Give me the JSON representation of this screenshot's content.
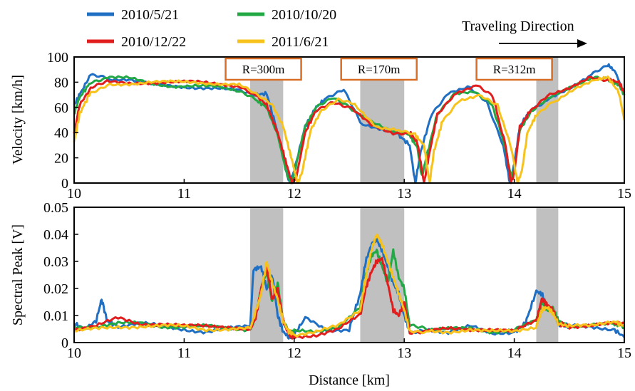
{
  "chart_data": [
    {
      "type": "line",
      "id": "velocity",
      "xlim": [
        10,
        15
      ],
      "ylim": [
        0,
        100
      ],
      "xticks": [
        "10",
        "11",
        "12",
        "13",
        "14",
        "15"
      ],
      "yticks": [
        "0",
        "20",
        "40",
        "60",
        "80",
        "100"
      ],
      "ylabel": "Velocity [km/h]",
      "xlabel": "",
      "bands": [
        [
          11.6,
          11.9
        ],
        [
          12.6,
          13.0
        ],
        [
          14.2,
          14.4
        ]
      ],
      "curve_labels": [
        {
          "text": "R=300m",
          "x_center": 11.72
        },
        {
          "text": "R=170m",
          "x_center": 12.77
        },
        {
          "text": "R=312m",
          "x_center": 14.0
        }
      ],
      "series": [
        {
          "name": "2010/5/21",
          "color": "#1f6fc4",
          "x": [
            10.0,
            10.05,
            10.15,
            10.3,
            10.5,
            10.7,
            10.9,
            11.1,
            11.3,
            11.5,
            11.65,
            11.75,
            11.85,
            11.92,
            11.96,
            12.0,
            12.1,
            12.2,
            12.3,
            12.45,
            12.6,
            12.8,
            12.95,
            13.05,
            13.1,
            13.15,
            13.25,
            13.4,
            13.6,
            13.75,
            13.9,
            13.96,
            14.0,
            14.05,
            14.15,
            14.3,
            14.5,
            14.7,
            14.85,
            14.92,
            15.0
          ],
          "y": [
            62,
            70,
            86,
            83,
            82,
            78,
            77,
            76,
            75,
            73,
            70,
            71,
            40,
            12,
            0,
            10,
            45,
            60,
            68,
            74,
            48,
            42,
            38,
            30,
            0,
            25,
            55,
            72,
            76,
            65,
            30,
            0,
            15,
            45,
            58,
            66,
            74,
            86,
            94,
            88,
            70
          ]
        },
        {
          "name": "2010/10/20",
          "color": "#22a845",
          "x": [
            10.0,
            10.05,
            10.15,
            10.3,
            10.5,
            10.7,
            10.9,
            11.1,
            11.3,
            11.5,
            11.65,
            11.75,
            11.85,
            11.93,
            11.97,
            12.0,
            12.1,
            12.2,
            12.35,
            12.5,
            12.7,
            12.9,
            13.05,
            13.12,
            13.16,
            13.2,
            13.3,
            13.45,
            13.65,
            13.8,
            13.92,
            13.97,
            14.0,
            14.05,
            14.15,
            14.3,
            14.5,
            14.7,
            14.85,
            14.95,
            15.0
          ],
          "y": [
            55,
            68,
            80,
            84,
            83,
            79,
            77,
            77,
            76,
            73,
            66,
            60,
            38,
            8,
            0,
            8,
            45,
            60,
            67,
            60,
            48,
            40,
            38,
            28,
            5,
            20,
            55,
            70,
            72,
            62,
            28,
            5,
            10,
            42,
            56,
            66,
            76,
            84,
            82,
            78,
            70
          ]
        },
        {
          "name": "2010/12/22",
          "color": "#e11d1d",
          "x": [
            10.0,
            10.05,
            10.15,
            10.3,
            10.5,
            10.7,
            10.9,
            11.1,
            11.3,
            11.5,
            11.65,
            11.75,
            11.85,
            11.93,
            11.98,
            12.02,
            12.1,
            12.2,
            12.35,
            12.5,
            12.7,
            12.9,
            13.05,
            13.12,
            13.18,
            13.22,
            13.3,
            13.45,
            13.65,
            13.8,
            13.92,
            13.97,
            14.0,
            14.05,
            14.15,
            14.3,
            14.5,
            14.7,
            14.85,
            14.95,
            15.0
          ],
          "y": [
            40,
            62,
            75,
            80,
            79,
            80,
            80,
            80,
            79,
            77,
            70,
            62,
            40,
            15,
            0,
            5,
            40,
            58,
            65,
            60,
            46,
            40,
            40,
            32,
            0,
            20,
            54,
            70,
            78,
            70,
            30,
            0,
            8,
            44,
            58,
            70,
            76,
            84,
            82,
            80,
            72
          ]
        },
        {
          "name": "2011/6/21",
          "color": "#f7c21c",
          "x": [
            10.0,
            10.05,
            10.15,
            10.3,
            10.5,
            10.7,
            10.9,
            11.1,
            11.3,
            11.5,
            11.65,
            11.8,
            11.9,
            11.98,
            12.03,
            12.07,
            12.15,
            12.25,
            12.4,
            12.55,
            12.75,
            12.95,
            13.1,
            13.18,
            13.23,
            13.27,
            13.35,
            13.5,
            13.7,
            13.85,
            13.98,
            14.03,
            14.07,
            14.12,
            14.2,
            14.35,
            14.55,
            14.75,
            14.85,
            14.95,
            15.0
          ],
          "y": [
            32,
            55,
            72,
            78,
            79,
            80,
            80,
            80,
            79,
            78,
            70,
            62,
            45,
            18,
            0,
            8,
            42,
            58,
            66,
            62,
            45,
            42,
            38,
            30,
            0,
            25,
            50,
            66,
            70,
            62,
            25,
            0,
            10,
            40,
            54,
            64,
            74,
            82,
            84,
            72,
            50
          ]
        }
      ]
    },
    {
      "type": "line",
      "id": "spectral",
      "xlim": [
        10,
        15
      ],
      "ylim": [
        0,
        0.05
      ],
      "xticks": [
        "10",
        "11",
        "12",
        "13",
        "14",
        "15"
      ],
      "yticks": [
        "0",
        "0.01",
        "0.02",
        "0.03",
        "0.04",
        "0.05"
      ],
      "ylabel": "Spectral Peak  [V]",
      "xlabel": "Distance [km]",
      "bands": [
        [
          11.6,
          11.9
        ],
        [
          12.6,
          13.0
        ],
        [
          14.2,
          14.4
        ]
      ],
      "series": [
        {
          "name": "2010/5/21",
          "color": "#1f6fc4",
          "x": [
            10.0,
            10.1,
            10.2,
            10.25,
            10.3,
            10.4,
            10.6,
            10.8,
            11.0,
            11.2,
            11.4,
            11.6,
            11.63,
            11.7,
            11.75,
            11.8,
            11.85,
            11.9,
            11.95,
            12.0,
            12.1,
            12.3,
            12.5,
            12.6,
            12.65,
            12.7,
            12.75,
            12.8,
            12.85,
            12.9,
            12.95,
            13.0,
            13.05,
            13.2,
            13.4,
            13.6,
            13.8,
            14.0,
            14.1,
            14.2,
            14.25,
            14.3,
            14.35,
            14.4,
            14.5,
            14.7,
            14.9,
            15.0
          ],
          "y": [
            0.007,
            0.005,
            0.008,
            0.016,
            0.008,
            0.006,
            0.007,
            0.006,
            0.005,
            0.004,
            0.005,
            0.006,
            0.027,
            0.028,
            0.02,
            0.025,
            0.01,
            0.004,
            0.002,
            0.003,
            0.009,
            0.004,
            0.005,
            0.018,
            0.03,
            0.036,
            0.038,
            0.034,
            0.028,
            0.022,
            0.018,
            0.01,
            0.004,
            0.005,
            0.004,
            0.006,
            0.003,
            0.004,
            0.007,
            0.019,
            0.018,
            0.013,
            0.012,
            0.007,
            0.006,
            0.006,
            0.005,
            0.002
          ]
        },
        {
          "name": "2010/10/20",
          "color": "#22a845",
          "x": [
            10.0,
            10.2,
            10.4,
            10.6,
            10.8,
            11.0,
            11.2,
            11.4,
            11.6,
            11.65,
            11.7,
            11.75,
            11.8,
            11.85,
            11.9,
            11.95,
            12.0,
            12.2,
            12.4,
            12.6,
            12.65,
            12.7,
            12.75,
            12.8,
            12.85,
            12.9,
            12.95,
            13.0,
            13.05,
            13.2,
            13.4,
            13.6,
            13.8,
            14.0,
            14.2,
            14.25,
            14.3,
            14.35,
            14.4,
            14.5,
            14.7,
            14.9,
            15.0
          ],
          "y": [
            0.006,
            0.006,
            0.007,
            0.007,
            0.006,
            0.006,
            0.006,
            0.005,
            0.005,
            0.01,
            0.02,
            0.026,
            0.015,
            0.022,
            0.008,
            0.004,
            0.004,
            0.004,
            0.006,
            0.013,
            0.025,
            0.032,
            0.034,
            0.028,
            0.022,
            0.034,
            0.024,
            0.02,
            0.006,
            0.005,
            0.005,
            0.005,
            0.004,
            0.005,
            0.008,
            0.015,
            0.012,
            0.013,
            0.008,
            0.006,
            0.007,
            0.007,
            0.006
          ]
        },
        {
          "name": "2010/12/22",
          "color": "#e11d1d",
          "x": [
            10.0,
            10.2,
            10.4,
            10.6,
            10.8,
            11.0,
            11.2,
            11.4,
            11.6,
            11.65,
            11.7,
            11.75,
            11.8,
            11.85,
            11.9,
            11.95,
            12.0,
            12.2,
            12.4,
            12.6,
            12.65,
            12.7,
            12.75,
            12.8,
            12.85,
            12.9,
            12.95,
            13.0,
            13.05,
            13.2,
            13.4,
            13.6,
            13.8,
            14.0,
            14.2,
            14.25,
            14.3,
            14.35,
            14.4,
            14.5,
            14.7,
            14.9,
            15.0
          ],
          "y": [
            0.005,
            0.006,
            0.009,
            0.007,
            0.007,
            0.006,
            0.006,
            0.006,
            0.005,
            0.009,
            0.02,
            0.028,
            0.016,
            0.02,
            0.008,
            0.003,
            0.002,
            0.003,
            0.005,
            0.01,
            0.02,
            0.026,
            0.03,
            0.031,
            0.022,
            0.012,
            0.01,
            0.015,
            0.004,
            0.004,
            0.005,
            0.005,
            0.005,
            0.004,
            0.008,
            0.016,
            0.014,
            0.012,
            0.007,
            0.006,
            0.006,
            0.007,
            0.007
          ]
        },
        {
          "name": "2011/6/21",
          "color": "#f7c21c",
          "x": [
            10.0,
            10.2,
            10.4,
            10.6,
            10.8,
            11.0,
            11.2,
            11.4,
            11.6,
            11.7,
            11.75,
            11.8,
            11.85,
            11.9,
            11.95,
            12.0,
            12.2,
            12.4,
            12.6,
            12.65,
            12.7,
            12.75,
            12.8,
            12.85,
            12.9,
            12.95,
            13.0,
            13.05,
            13.2,
            13.4,
            13.6,
            13.8,
            14.0,
            14.2,
            14.25,
            14.3,
            14.35,
            14.4,
            14.5,
            14.7,
            14.9,
            15.0
          ],
          "y": [
            0.004,
            0.005,
            0.006,
            0.006,
            0.006,
            0.006,
            0.005,
            0.005,
            0.005,
            0.018,
            0.03,
            0.022,
            0.016,
            0.008,
            0.004,
            0.003,
            0.004,
            0.006,
            0.012,
            0.024,
            0.034,
            0.04,
            0.036,
            0.03,
            0.024,
            0.018,
            0.012,
            0.004,
            0.004,
            0.004,
            0.005,
            0.004,
            0.004,
            0.006,
            0.012,
            0.013,
            0.011,
            0.007,
            0.006,
            0.006,
            0.008,
            0.006
          ]
        }
      ]
    }
  ],
  "legend": {
    "items": [
      {
        "label": "2010/5/21",
        "color": "#1f6fc4"
      },
      {
        "label": "2010/10/20",
        "color": "#22a845"
      },
      {
        "label": "2010/12/22",
        "color": "#e11d1d"
      },
      {
        "label": "2011/6/21",
        "color": "#f7c21c"
      }
    ]
  },
  "annotation": {
    "text": "Traveling Direction"
  },
  "colors": {
    "band": "#c0c0c0",
    "label_box_border": "#d86d26"
  }
}
